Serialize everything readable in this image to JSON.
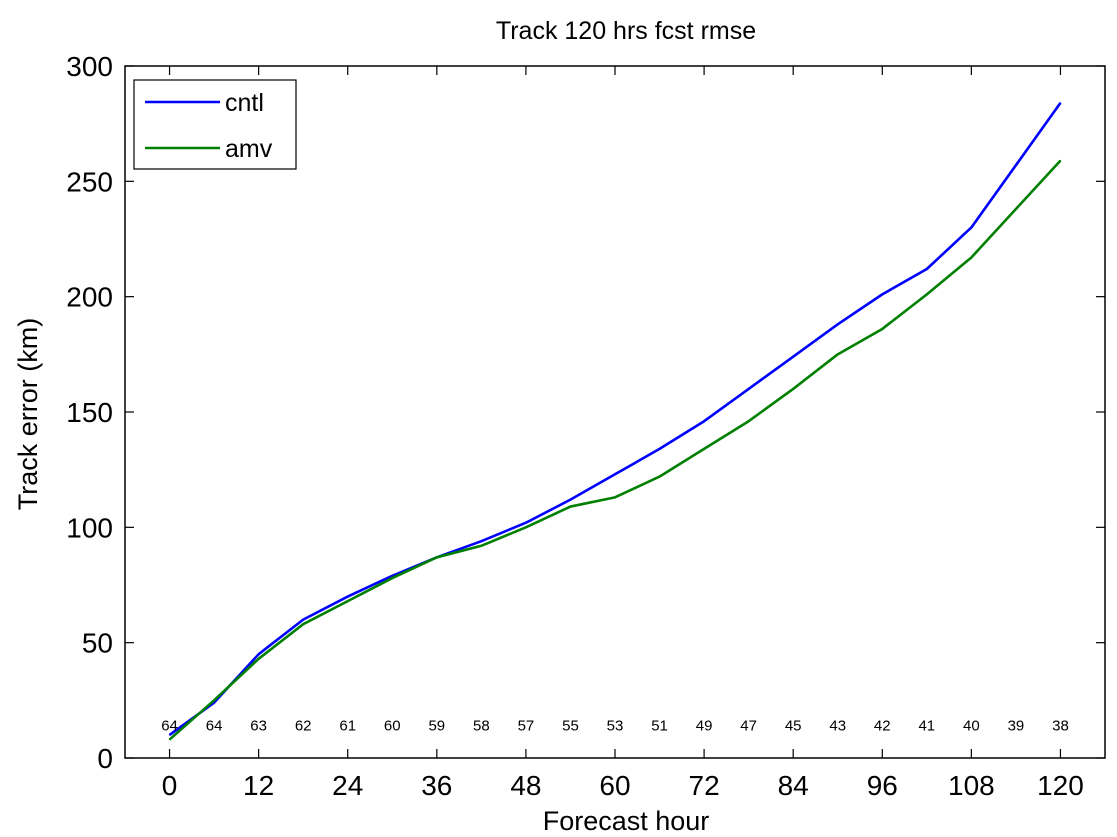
{
  "chart_data": {
    "type": "line",
    "title": "Track 120 hrs fcst rmse",
    "xlabel": "Forecast hour",
    "ylabel": "Track error (km)",
    "xlim": [
      -6,
      126
    ],
    "ylim": [
      0,
      300
    ],
    "xticks": [
      0,
      12,
      24,
      36,
      48,
      60,
      72,
      84,
      96,
      108,
      120
    ],
    "yticks": [
      0,
      50,
      100,
      150,
      200,
      250,
      300
    ],
    "grid": false,
    "legend_position": "top-left",
    "x": [
      0,
      6,
      12,
      18,
      24,
      30,
      36,
      42,
      48,
      54,
      60,
      66,
      72,
      78,
      84,
      90,
      96,
      102,
      108,
      114,
      120
    ],
    "series": [
      {
        "name": "cntl",
        "color": "#0000ff",
        "values": [
          10,
          24,
          45,
          60,
          70,
          79,
          87,
          94,
          102,
          112,
          123,
          134,
          146,
          160,
          174,
          188,
          201,
          212,
          230,
          257,
          284
        ]
      },
      {
        "name": "amv",
        "color": "#008000",
        "values": [
          8,
          25,
          43,
          58,
          68,
          78,
          87,
          92,
          100,
          109,
          113,
          122,
          134,
          146,
          160,
          175,
          186,
          201,
          217,
          238,
          259
        ]
      }
    ],
    "annotations": {
      "sample_counts": [
        "64",
        "64",
        "63",
        "62",
        "61",
        "60",
        "59",
        "58",
        "57",
        "55",
        "53",
        "51",
        "49",
        "47",
        "45",
        "43",
        "42",
        "41",
        "40",
        "39",
        "38"
      ],
      "y_value": 14
    }
  }
}
